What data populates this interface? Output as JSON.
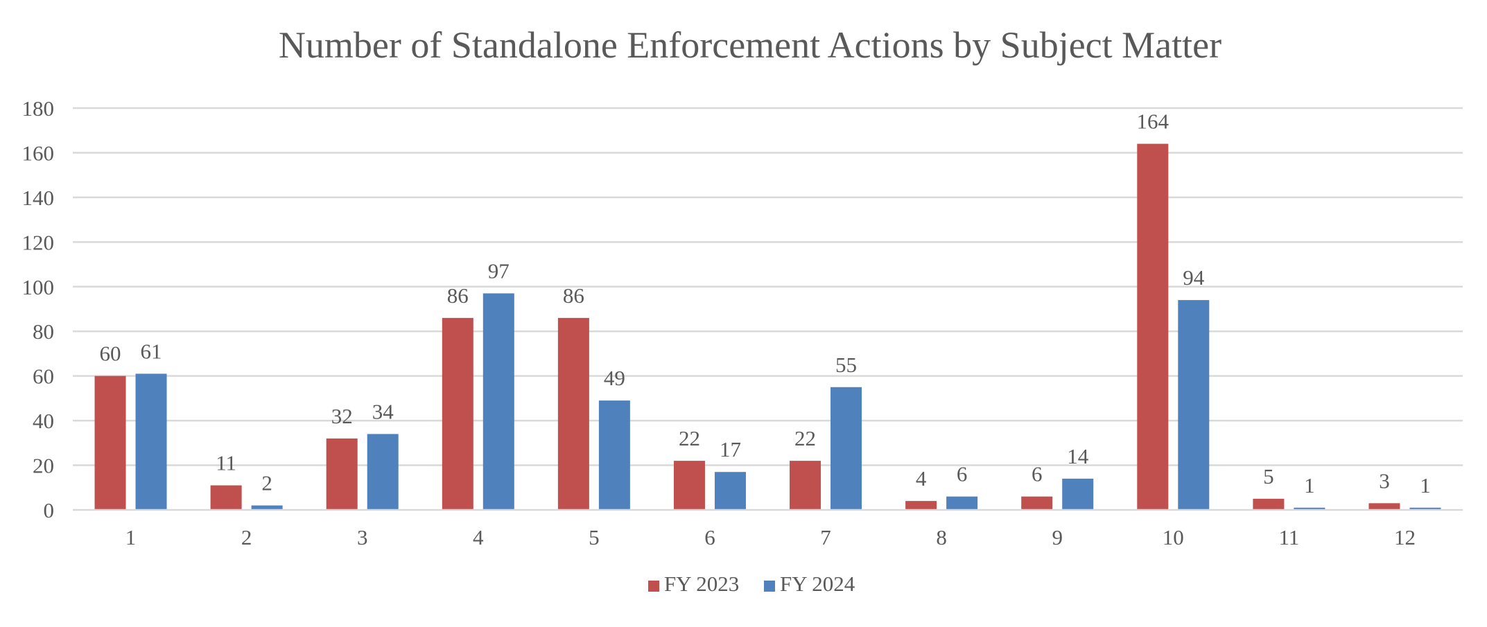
{
  "chart_data": {
    "type": "bar",
    "title": "Number of Standalone Enforcement Actions by Subject Matter",
    "xlabel": "",
    "ylabel": "",
    "categories": [
      "1",
      "2",
      "3",
      "4",
      "5",
      "6",
      "7",
      "8",
      "9",
      "10",
      "11",
      "12"
    ],
    "series": [
      {
        "name": "FY 2023",
        "color": "#C0504D",
        "values": [
          60,
          11,
          32,
          86,
          86,
          22,
          22,
          4,
          6,
          164,
          5,
          3
        ]
      },
      {
        "name": "FY 2024",
        "color": "#4F81BD",
        "values": [
          61,
          2,
          34,
          97,
          49,
          17,
          55,
          6,
          14,
          94,
          1,
          1
        ]
      }
    ],
    "ylim": [
      0,
      180
    ],
    "yticks": [
      0,
      20,
      40,
      60,
      80,
      100,
      120,
      140,
      160,
      180
    ],
    "grid": true,
    "legend_position": "bottom-center",
    "gridline_color": "#D9D9D9",
    "axis_line_color": "#D9D9D9"
  }
}
